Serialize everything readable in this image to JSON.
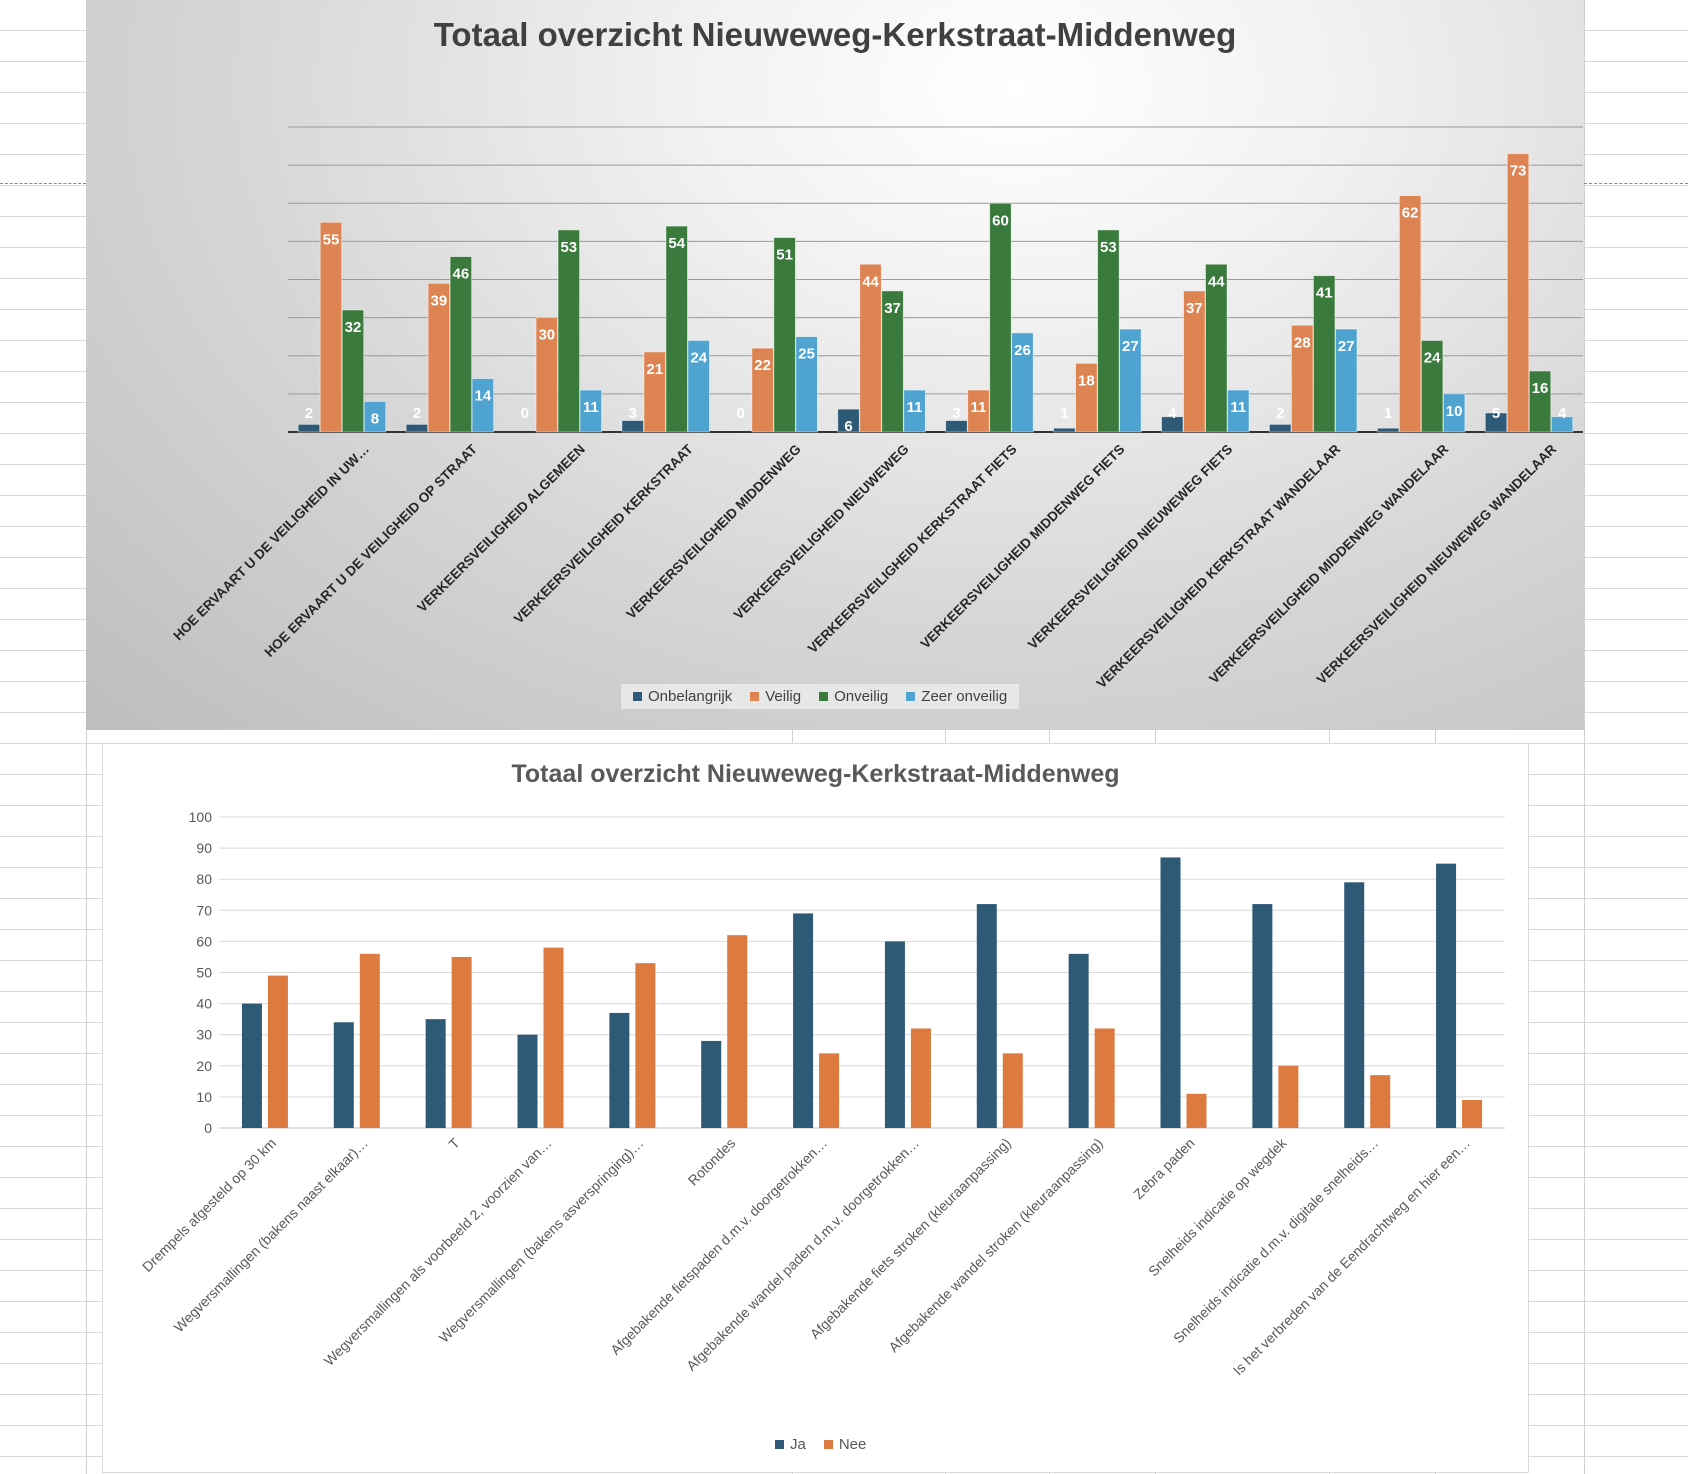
{
  "charts": [
    {
      "title": "Totaal overzicht Nieuweweg-Kerkstraat-Middenweg",
      "chart_data": {
        "type": "bar",
        "categories": [
          "HOE ERVAART U DE VEILIGHEID IN UW…",
          "HOE ERVAART U DE VEILIGHEID OP STRAAT",
          "VERKEERSVEILIGHEID ALGEMEEN",
          "VERKEERSVEILIGHEID KERKSTRAAT",
          "VERKEERSVEILIGHEID MIDDENWEG",
          "VERKEERSVEILIGHEID NIEUWEWEG",
          "VERKEERSVEILIGHEID KERKSTRAAT FIETS",
          "VERKEERSVEILIGHEID MIDDENWEG FIETS",
          "VERKEERSVEILIGHEID NIEUWEWEG FIETS",
          "VERKEERSVEILIGHEID KERKSTRAAT WANDELAAR",
          "VERKEERSVEILIGHEID MIDDENWEG WANDELAAR",
          "VERKEERSVEILIGHEID NIEUWEWEG WANDELAAR"
        ],
        "series": [
          {
            "name": "Onbelangrijk",
            "color": "#2e5a77",
            "values": [
              2,
              2,
              0,
              3,
              0,
              6,
              3,
              1,
              4,
              2,
              1,
              5
            ]
          },
          {
            "name": "Veilig",
            "color": "#dd8452",
            "values": [
              55,
              39,
              30,
              21,
              22,
              44,
              11,
              18,
              37,
              28,
              62,
              73
            ]
          },
          {
            "name": "Onveilig",
            "color": "#3b7a3d",
            "values": [
              32,
              46,
              53,
              54,
              51,
              37,
              60,
              53,
              44,
              41,
              24,
              16
            ]
          },
          {
            "name": "Zeer onveilig",
            "color": "#4fa3d1",
            "values": [
              8,
              14,
              11,
              24,
              25,
              11,
              26,
              27,
              11,
              27,
              10,
              4
            ]
          }
        ],
        "ylim": [
          0,
          80
        ],
        "grid": true,
        "data_labels": true,
        "legend_position": "bottom"
      }
    },
    {
      "title": "Totaal overzicht Nieuweweg-Kerkstraat-Middenweg",
      "chart_data": {
        "type": "bar",
        "categories": [
          "Drempels afgesteld op 30 km",
          "Wegversmallingen (bakens naast elkaar)…",
          "T",
          "Wegversmallingen als voorbeeld 2, voorzien van…",
          "Wegversmallingen (bakens asverspringing)…",
          "Rotondes",
          "Afgebakende fietspaden d.m.v. doorgetrokken…",
          "Afgebakende wandel paden d.m.v. doorgetrokken…",
          "Afgebakende fiets stroken (kleuraanpassing)",
          "Afgebakende wandel stroken (kleuraanpassing)",
          "Zebra paden",
          "Snelheids indicatie op wegdek",
          "Snelheids indicatie d.m.v. digitale snelheids…",
          "Is het verbreden van de Eendrachtweg en hier een…"
        ],
        "series": [
          {
            "name": "Ja",
            "color": "#2e5a77",
            "values": [
              40,
              34,
              35,
              30,
              37,
              28,
              69,
              60,
              72,
              56,
              87,
              72,
              79,
              85
            ]
          },
          {
            "name": "Nee",
            "color": "#dd7a3f",
            "values": [
              49,
              56,
              55,
              58,
              53,
              62,
              24,
              32,
              24,
              32,
              11,
              20,
              17,
              9
            ]
          }
        ],
        "yticks": [
          "0",
          "10",
          "20",
          "30",
          "40",
          "50",
          "60",
          "70",
          "80",
          "90",
          "100"
        ],
        "ylim": [
          0,
          100
        ],
        "grid": true,
        "data_labels": false,
        "legend_position": "bottom"
      }
    }
  ]
}
